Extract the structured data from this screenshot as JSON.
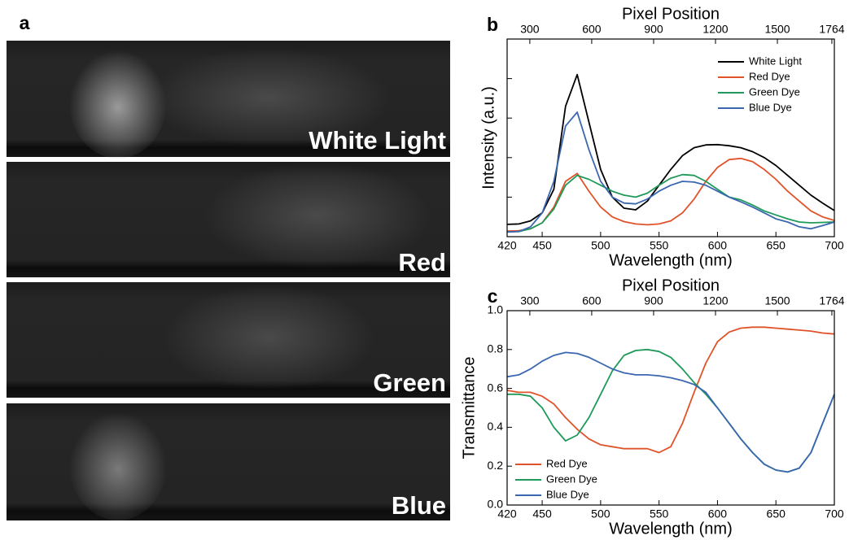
{
  "panel_a": {
    "label": "a",
    "captions": [
      "White Light",
      "Red",
      "Green",
      "Blue"
    ]
  },
  "chart_data": [
    {
      "type": "line",
      "panel_label": "b",
      "xlabel": "Wavelength (nm)",
      "x2label": "Pixel Position",
      "ylabel": "Intensity (a.u.)",
      "xlim": [
        420,
        700
      ],
      "xticks": [
        420,
        450,
        500,
        550,
        600,
        650,
        700
      ],
      "x2lim": [
        190,
        1776
      ],
      "x2ticks": [
        300,
        600,
        900,
        1200,
        1500,
        1764
      ],
      "ylim": [
        0,
        5
      ],
      "yticks": [
        1,
        2,
        3,
        4
      ],
      "ytick_labels": false,
      "legend": "upper right",
      "x": [
        420,
        430,
        440,
        450,
        460,
        470,
        480,
        490,
        500,
        510,
        520,
        530,
        540,
        550,
        560,
        570,
        580,
        590,
        600,
        610,
        620,
        630,
        640,
        650,
        660,
        670,
        680,
        690,
        700
      ],
      "series": [
        {
          "name": "White Light",
          "color": "#000000",
          "values": [
            0.31,
            0.32,
            0.4,
            0.6,
            1.2,
            3.3,
            4.1,
            2.9,
            1.7,
            1.0,
            0.72,
            0.68,
            0.9,
            1.3,
            1.7,
            2.05,
            2.25,
            2.32,
            2.33,
            2.3,
            2.25,
            2.15,
            2.0,
            1.8,
            1.55,
            1.3,
            1.05,
            0.85,
            0.66
          ]
        },
        {
          "name": "Red Dye",
          "color": "#e0532a",
          "values": [
            0.14,
            0.15,
            0.2,
            0.35,
            0.75,
            1.4,
            1.6,
            1.15,
            0.75,
            0.5,
            0.38,
            0.32,
            0.3,
            0.32,
            0.4,
            0.6,
            0.95,
            1.4,
            1.75,
            1.95,
            1.98,
            1.9,
            1.7,
            1.45,
            1.15,
            0.9,
            0.65,
            0.5,
            0.41
          ]
        },
        {
          "name": "Green Dye",
          "color": "#1f9a5a",
          "values": [
            0.12,
            0.13,
            0.2,
            0.35,
            0.7,
            1.3,
            1.55,
            1.45,
            1.3,
            1.15,
            1.05,
            1.0,
            1.1,
            1.3,
            1.48,
            1.57,
            1.55,
            1.4,
            1.2,
            1.0,
            0.93,
            0.8,
            0.65,
            0.55,
            0.45,
            0.37,
            0.35,
            0.36,
            0.37
          ]
        },
        {
          "name": "Blue Dye",
          "color": "#3a67b0",
          "values": [
            0.12,
            0.13,
            0.25,
            0.6,
            1.4,
            2.8,
            3.15,
            2.2,
            1.4,
            1.0,
            0.85,
            0.83,
            0.95,
            1.15,
            1.3,
            1.4,
            1.38,
            1.3,
            1.15,
            1.0,
            0.88,
            0.75,
            0.6,
            0.45,
            0.37,
            0.25,
            0.2,
            0.28,
            0.37
          ]
        }
      ]
    },
    {
      "type": "line",
      "panel_label": "c",
      "xlabel": "Wavelength (nm)",
      "x2label": "Pixel Position",
      "ylabel": "Transmittance",
      "xlim": [
        420,
        700
      ],
      "xticks": [
        420,
        450,
        500,
        550,
        600,
        650,
        700
      ],
      "x2lim": [
        190,
        1776
      ],
      "x2ticks": [
        300,
        600,
        900,
        1200,
        1500,
        1764
      ],
      "ylim": [
        0,
        1
      ],
      "yticks": [
        {
          "value": 0,
          "label": "0.0"
        },
        0.2,
        0.4,
        0.6,
        0.8,
        {
          "value": 1,
          "label": "1.0"
        }
      ],
      "legend": "lower left",
      "x": [
        420,
        430,
        440,
        450,
        460,
        470,
        480,
        490,
        500,
        510,
        520,
        530,
        540,
        550,
        560,
        570,
        580,
        590,
        600,
        610,
        620,
        630,
        640,
        650,
        660,
        670,
        680,
        690,
        700
      ],
      "series": [
        {
          "name": "Red Dye",
          "color": "#e0532a",
          "values": [
            0.59,
            0.58,
            0.58,
            0.56,
            0.52,
            0.45,
            0.39,
            0.34,
            0.31,
            0.3,
            0.29,
            0.29,
            0.29,
            0.27,
            0.3,
            0.42,
            0.58,
            0.73,
            0.84,
            0.89,
            0.91,
            0.915,
            0.915,
            0.91,
            0.905,
            0.9,
            0.895,
            0.885,
            0.88
          ]
        },
        {
          "name": "Green Dye",
          "color": "#1f9a5a",
          "values": [
            0.57,
            0.57,
            0.56,
            0.5,
            0.4,
            0.33,
            0.36,
            0.45,
            0.57,
            0.69,
            0.77,
            0.795,
            0.8,
            0.79,
            0.76,
            0.7,
            0.63,
            0.57,
            0.5,
            0.42,
            0.34,
            0.27,
            0.21,
            0.18,
            0.17,
            0.19,
            0.27,
            0.42,
            0.57
          ]
        },
        {
          "name": "Blue Dye",
          "color": "#3a67b0",
          "values": [
            0.66,
            0.67,
            0.7,
            0.74,
            0.77,
            0.785,
            0.78,
            0.76,
            0.73,
            0.7,
            0.68,
            0.67,
            0.67,
            0.665,
            0.655,
            0.64,
            0.62,
            0.58,
            0.5,
            0.42,
            0.34,
            0.27,
            0.21,
            0.18,
            0.17,
            0.19,
            0.27,
            0.42,
            0.57
          ]
        }
      ]
    }
  ]
}
